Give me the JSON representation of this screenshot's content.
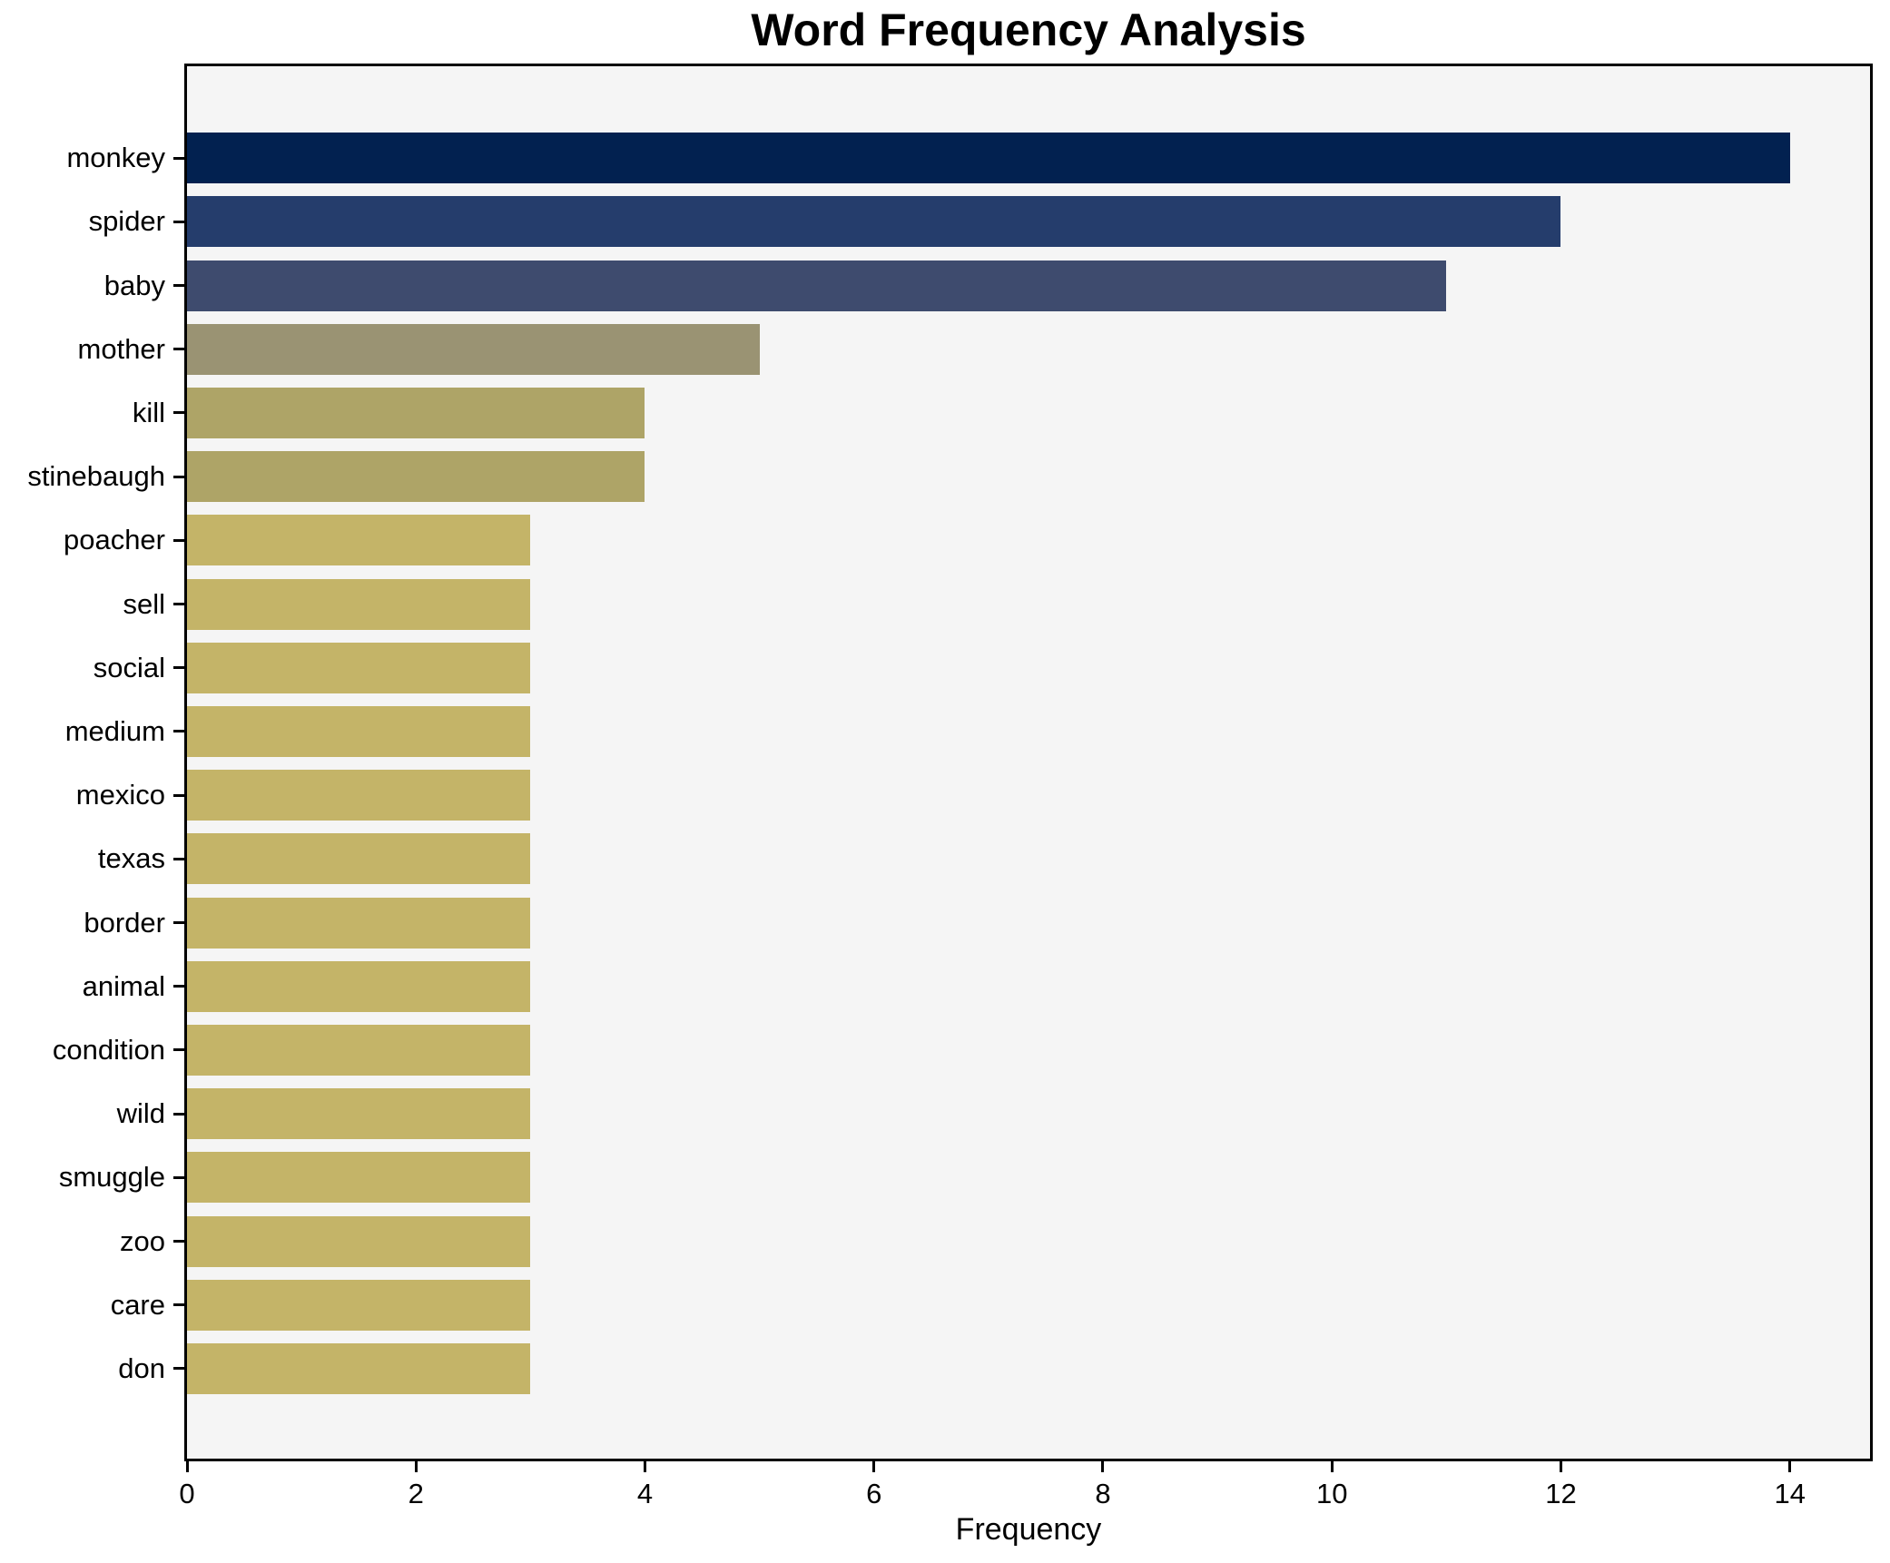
{
  "chart_data": {
    "type": "bar",
    "orientation": "horizontal",
    "title": "Word Frequency Analysis",
    "xlabel": "Frequency",
    "ylabel": "",
    "categories": [
      "monkey",
      "spider",
      "baby",
      "mother",
      "kill",
      "stinebaugh",
      "poacher",
      "sell",
      "social",
      "medium",
      "mexico",
      "texas",
      "border",
      "animal",
      "condition",
      "wild",
      "smuggle",
      "zoo",
      "care",
      "don"
    ],
    "values": [
      14,
      12,
      11,
      5,
      4,
      4,
      3,
      3,
      3,
      3,
      3,
      3,
      3,
      3,
      3,
      3,
      3,
      3,
      3,
      3
    ],
    "bar_colors": [
      "#022150",
      "#253d6c",
      "#3e4b6e",
      "#9a9373",
      "#aea467",
      "#aea467",
      "#c4b468",
      "#c4b468",
      "#c4b468",
      "#c4b468",
      "#c4b468",
      "#c4b468",
      "#c4b468",
      "#c4b468",
      "#c4b468",
      "#c4b468",
      "#c4b468",
      "#c4b468",
      "#c4b468",
      "#c4b468"
    ],
    "xticks": [
      0,
      2,
      4,
      6,
      8,
      10,
      12,
      14
    ],
    "xlim": [
      0,
      14.7
    ],
    "grid": false,
    "legend": "none",
    "plot_background": "#f5f5f5",
    "figure_background": "#ffffff",
    "spine_color": "#000000",
    "text_color": "#000000"
  }
}
